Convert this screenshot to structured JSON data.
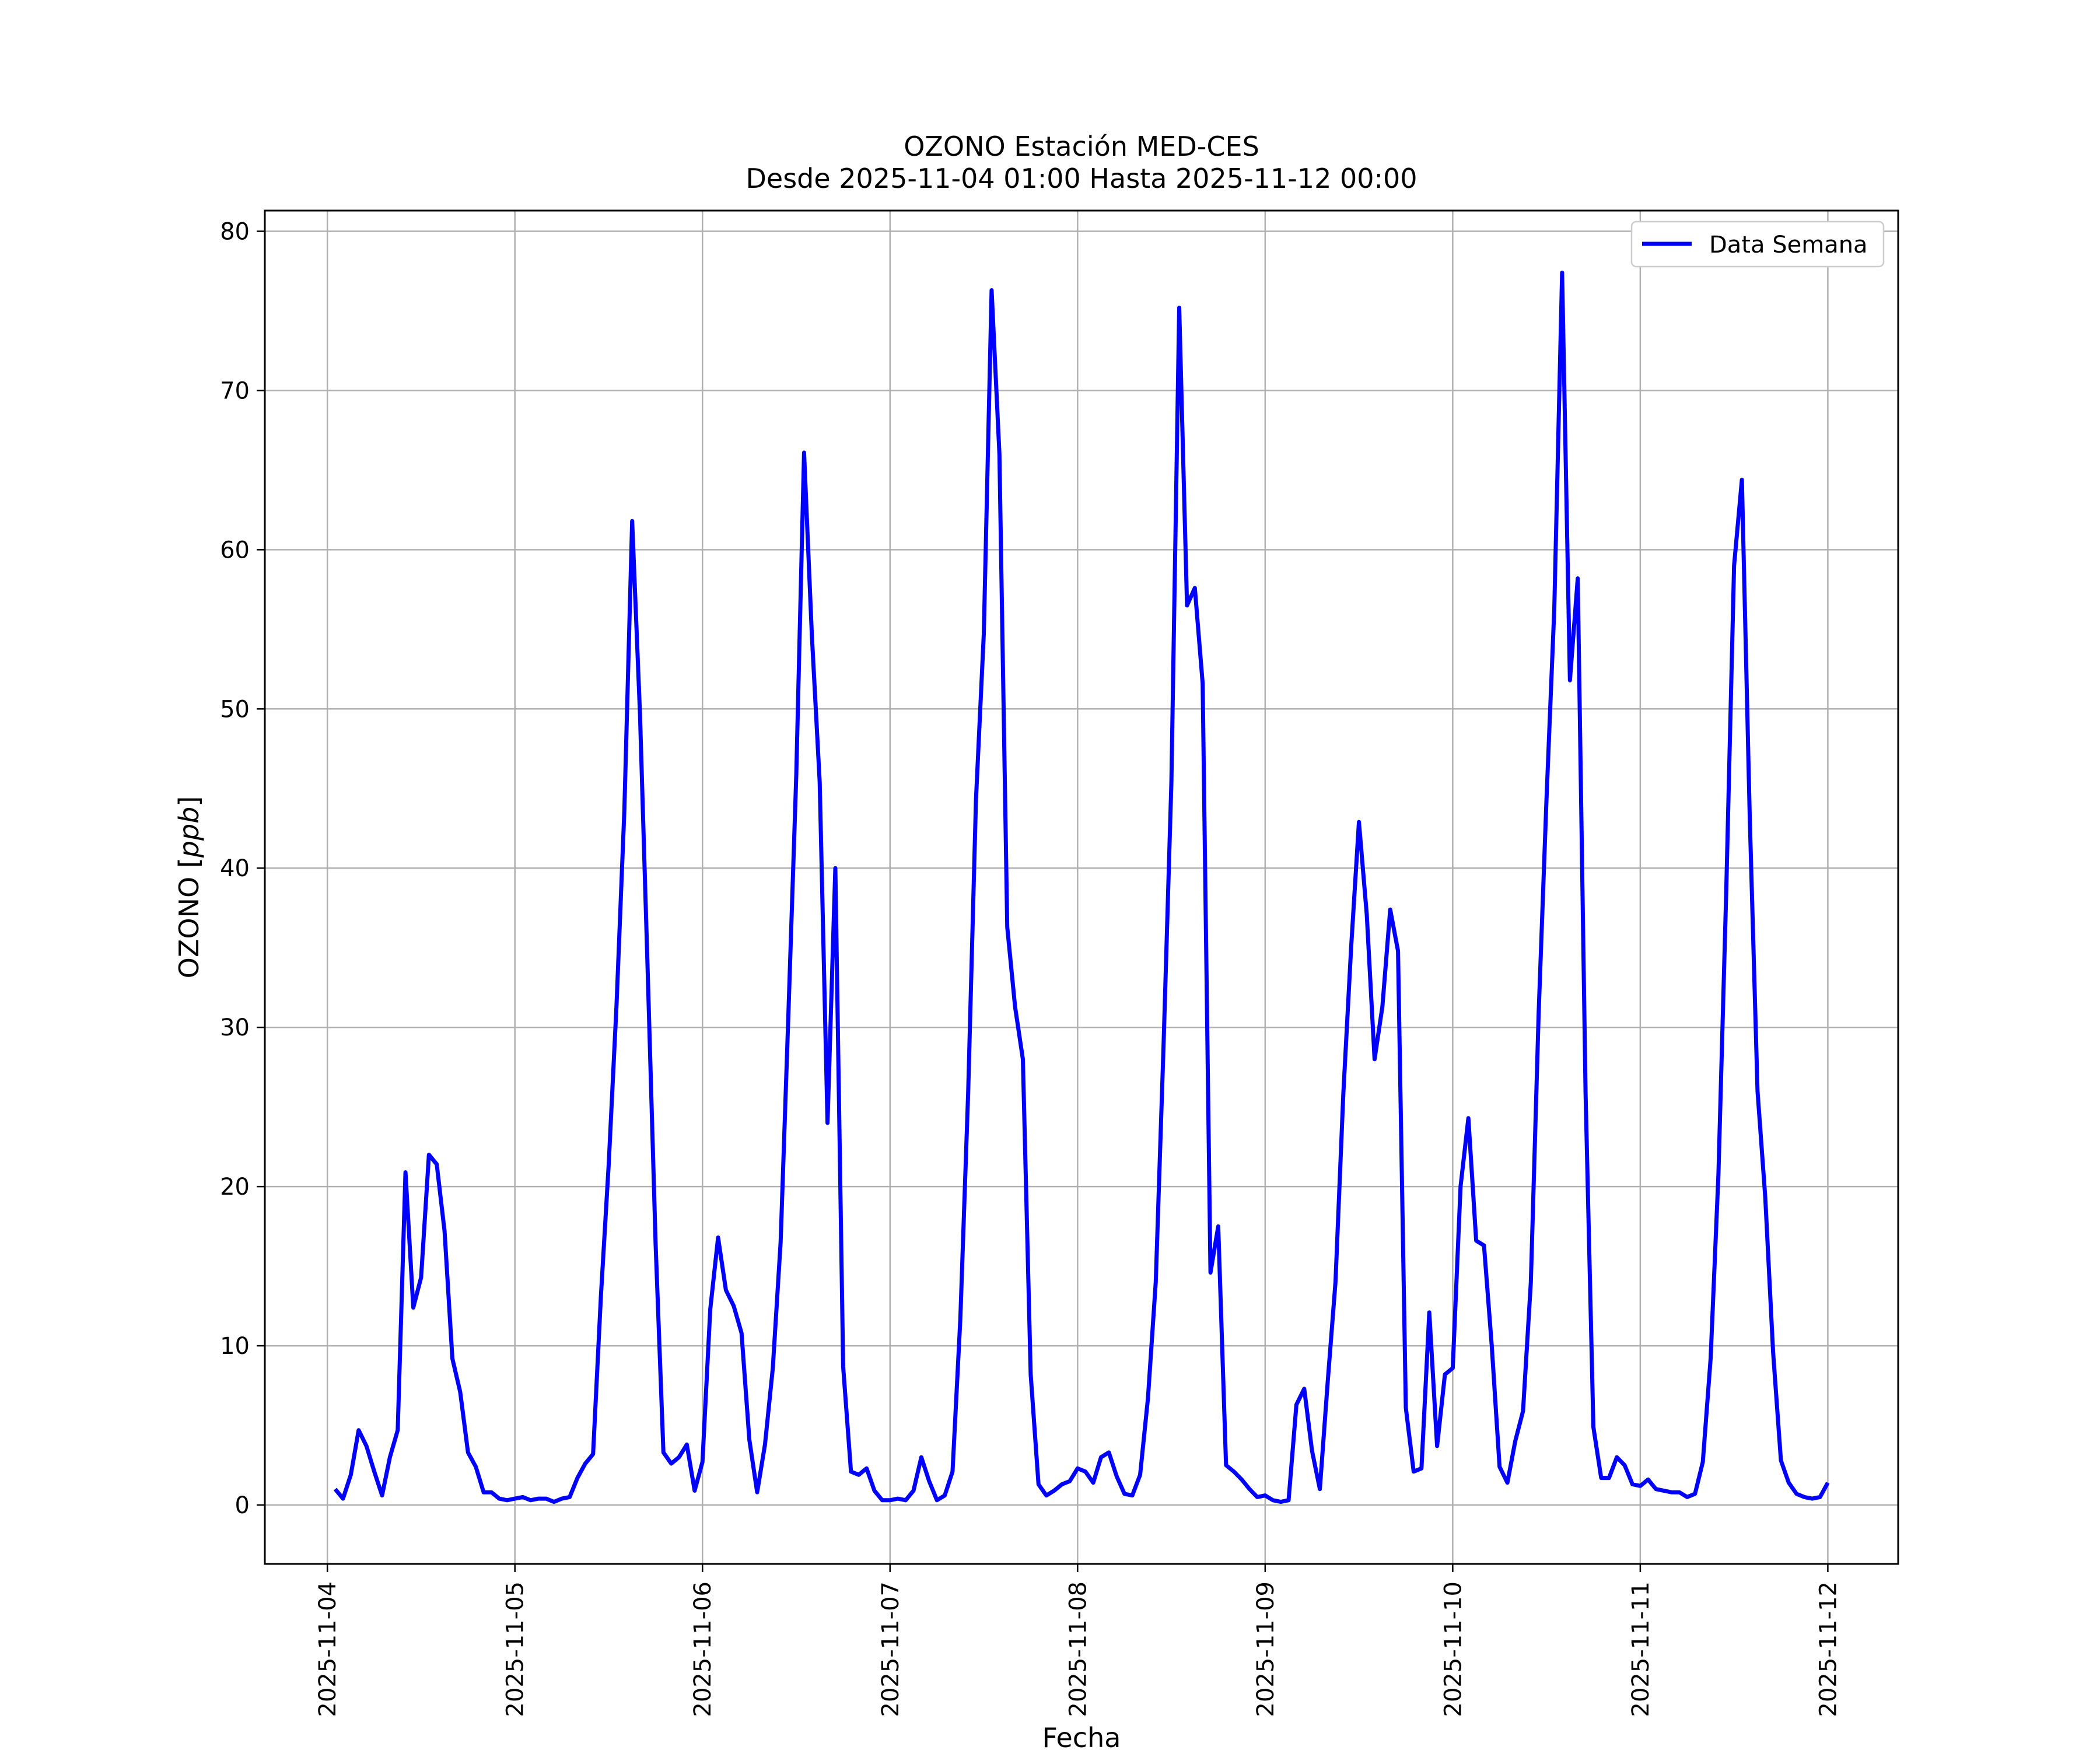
{
  "chart_data": {
    "type": "line",
    "title": "OZONO Estación MED-CES",
    "subtitle": "Desde 2025-11-04 01:00 Hasta 2025-11-12 00:00",
    "xlabel": "Fecha",
    "ylabel": "OZONO [ppb]",
    "ylabel_text": "OZONO [",
    "ylabel_unit": "ppb",
    "ylabel_close": "]",
    "x_ticks": [
      "2025-11-04",
      "2025-11-05",
      "2025-11-06",
      "2025-11-07",
      "2025-11-08",
      "2025-11-09",
      "2025-11-10",
      "2025-11-11",
      "2025-11-12"
    ],
    "y_ticks": [
      "0",
      "10",
      "20",
      "30",
      "40",
      "50",
      "60",
      "70",
      "80"
    ],
    "xlim": [
      "2025-11-03 16:00",
      "2025-11-12 09:00"
    ],
    "ylim": [
      -3.7,
      81.3
    ],
    "grid": true,
    "legend_position": "top-right",
    "line_color": "#0000ff",
    "series": [
      {
        "name": "Data Semana",
        "color": "#0000ff",
        "start": "2025-11-04 01:00",
        "interval_hours": 1,
        "values": [
          1.0,
          0.4,
          1.9,
          4.7,
          3.7,
          2.1,
          0.6,
          3.0,
          4.7,
          20.9,
          12.4,
          14.3,
          22.0,
          21.4,
          17.2,
          9.2,
          7.1,
          3.3,
          2.4,
          0.8,
          0.8,
          0.4,
          0.3,
          0.4,
          0.5,
          0.3,
          0.4,
          0.4,
          0.2,
          0.4,
          0.5,
          1.7,
          2.6,
          3.2,
          13.1,
          21.4,
          31.4,
          43.6,
          61.8,
          49.7,
          33.3,
          16.4,
          3.3,
          2.6,
          3.0,
          3.8,
          0.9,
          2.7,
          12.3,
          16.8,
          13.5,
          12.5,
          10.8,
          4.1,
          0.8,
          3.8,
          8.6,
          16.5,
          30.9,
          45.8,
          66.1,
          54.6,
          45.4,
          24.0,
          40.0,
          8.7,
          2.1,
          1.9,
          2.3,
          0.9,
          0.3,
          0.3,
          0.4,
          0.3,
          0.9,
          3.0,
          1.5,
          0.3,
          0.6,
          2.1,
          11.7,
          25.9,
          44.3,
          54.7,
          76.3,
          66.0,
          36.3,
          31.3,
          28.0,
          8.2,
          1.3,
          0.6,
          0.9,
          1.3,
          1.5,
          2.3,
          2.1,
          1.4,
          3.0,
          3.3,
          1.8,
          0.7,
          0.6,
          1.9,
          6.7,
          14.0,
          28.9,
          45.4,
          75.2,
          56.5,
          57.6,
          51.6,
          14.6,
          17.5,
          2.5,
          2.1,
          1.6,
          1.0,
          0.5,
          0.6,
          0.3,
          0.2,
          0.3,
          6.3,
          7.3,
          3.4,
          1.0,
          7.7,
          14.0,
          25.8,
          35.0,
          42.9,
          37.1,
          28.0,
          31.3,
          37.4,
          34.8,
          6.1,
          2.1,
          2.3,
          12.1,
          3.7,
          8.2,
          8.6,
          20.0,
          24.3,
          16.6,
          16.3,
          10.0,
          2.4,
          1.4,
          4.0,
          5.9,
          14.0,
          30.9,
          44.3,
          56.3,
          77.4,
          51.8,
          58.2,
          25.9,
          4.9,
          1.7,
          1.7,
          3.0,
          2.5,
          1.3,
          1.2,
          1.6,
          1.0,
          0.9,
          0.8,
          0.8,
          0.5,
          0.7,
          2.7,
          9.2,
          20.8,
          38.6,
          59.0,
          64.4,
          43.3,
          26.0,
          19.3,
          9.6,
          2.8,
          1.4,
          0.7,
          0.5,
          0.4,
          0.5,
          1.4
        ]
      }
    ]
  }
}
